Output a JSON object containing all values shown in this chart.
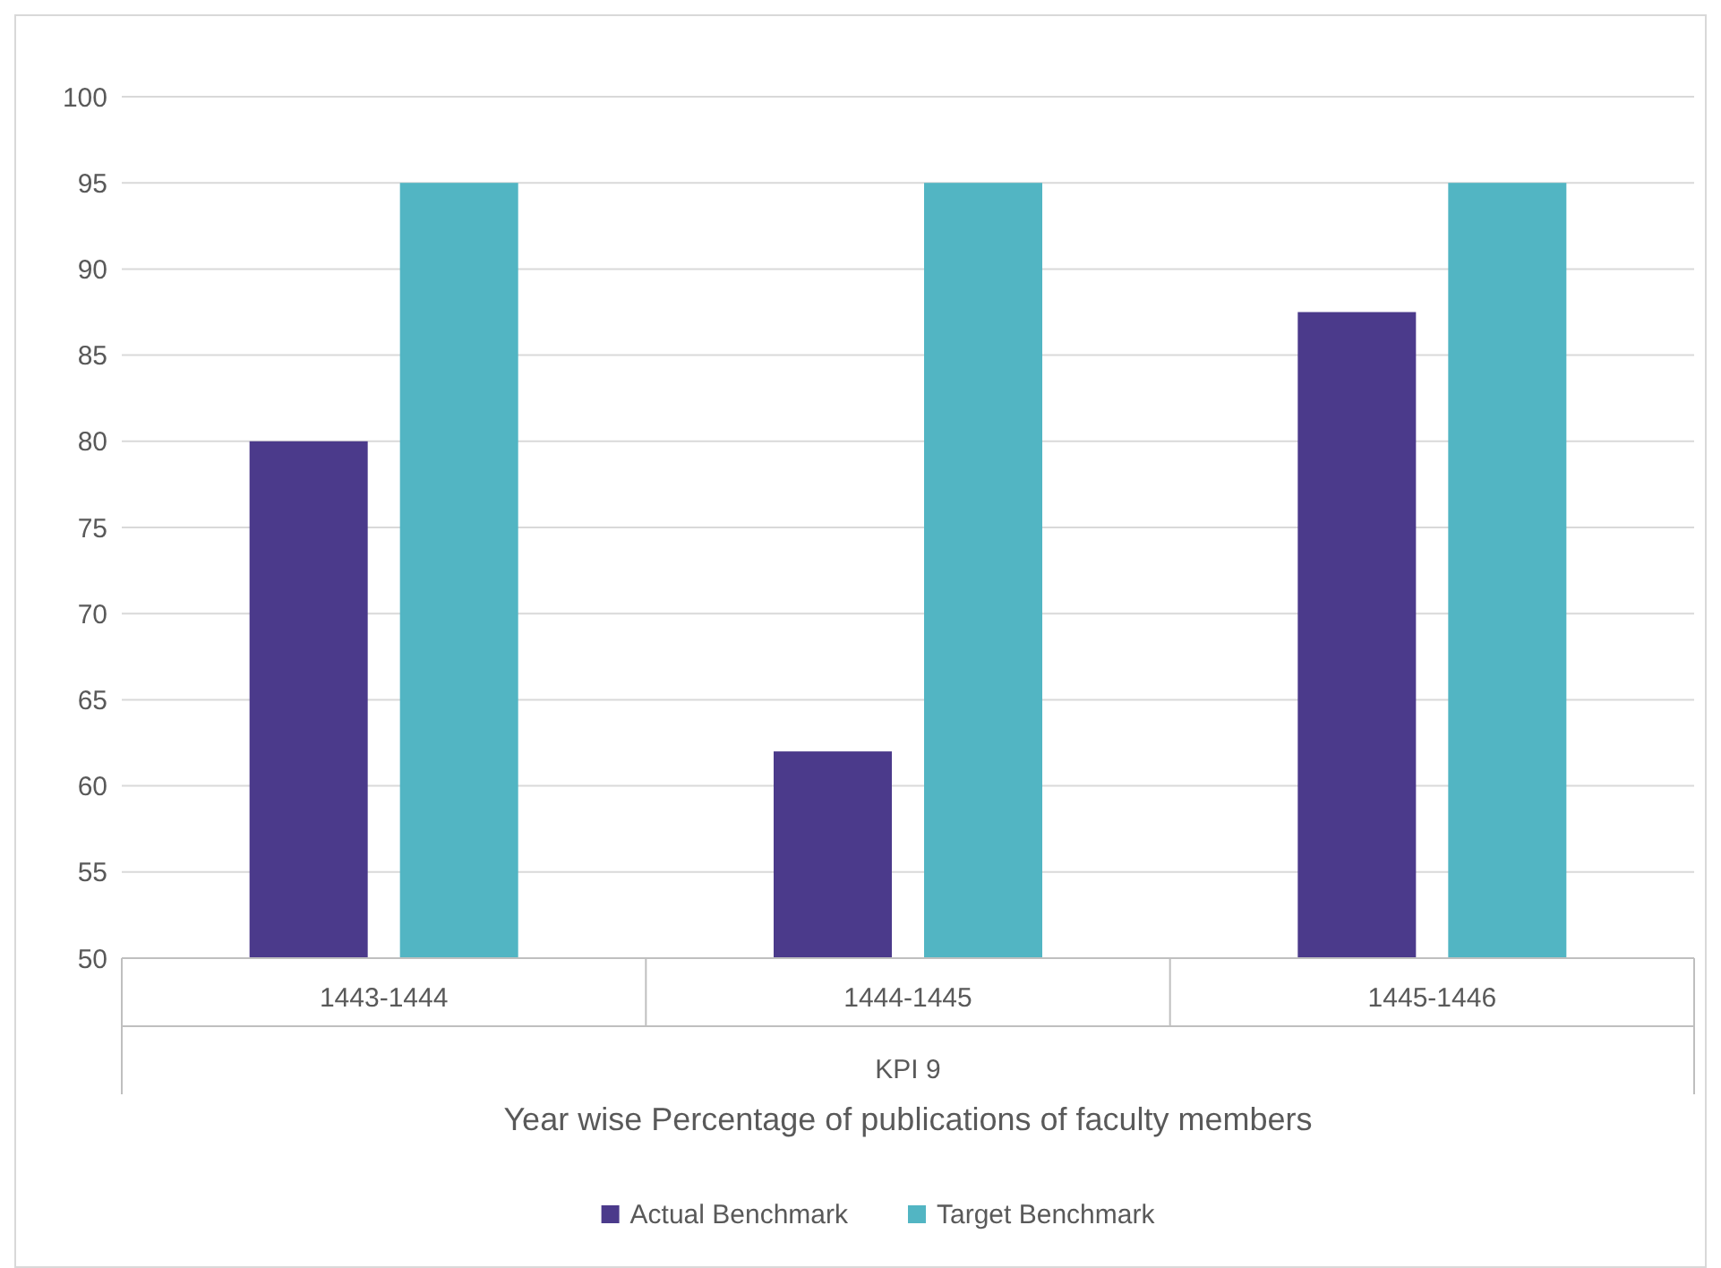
{
  "chart_data": {
    "type": "bar",
    "xlabel": "Year wise Percentage of publications of faculty members",
    "categories": [
      "1443-1444",
      "1444-1445",
      "1445-1446"
    ],
    "series": [
      {
        "name": "Actual Benchmark",
        "color": "#4b3a8b",
        "values": [
          80,
          62,
          87.5
        ]
      },
      {
        "name": "Target Benchmark",
        "color": "#52b5c3",
        "values": [
          95,
          95,
          95
        ]
      }
    ],
    "ylim": [
      50,
      100
    ],
    "yticks": [
      50,
      55,
      60,
      65,
      70,
      75,
      80,
      85,
      90,
      95,
      100
    ],
    "grid": "y",
    "legend": "bottom",
    "annotations": [
      "KPI 9"
    ]
  }
}
